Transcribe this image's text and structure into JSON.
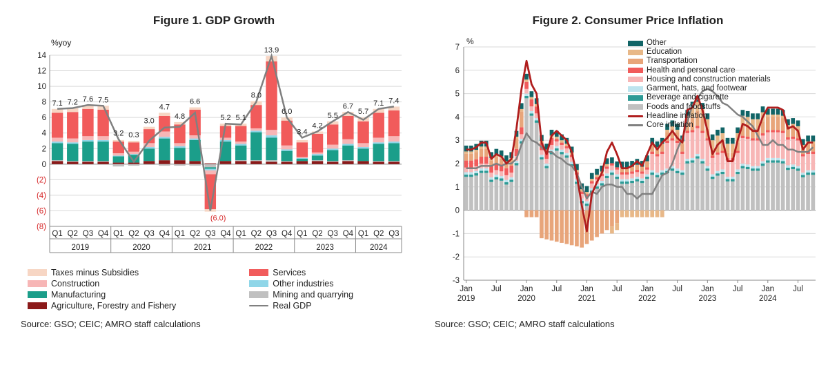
{
  "figure1": {
    "title": "Figure 1.   GDP Growth",
    "type": "stacked-bar + line",
    "y_axis_label": "%yoy",
    "ylim": [
      -8,
      14
    ],
    "yticks": [
      -8,
      -6,
      -4,
      -2,
      0,
      2,
      4,
      6,
      8,
      10,
      12,
      14
    ],
    "ytick_labels": [
      "(8)",
      "(6)",
      "(4)",
      "(2)",
      "0",
      "2",
      "4",
      "6",
      "8",
      "10",
      "12",
      "14"
    ],
    "categories": [
      "Q1",
      "Q2",
      "Q3",
      "Q4",
      "Q1",
      "Q2",
      "Q3",
      "Q4",
      "Q1",
      "Q2",
      "Q3",
      "Q4",
      "Q1",
      "Q2",
      "Q3",
      "Q4",
      "Q1",
      "Q2",
      "Q3",
      "Q4",
      "Q1",
      "Q2",
      "Q3"
    ],
    "year_groups": [
      {
        "label": "2019",
        "span": 4
      },
      {
        "label": "2020",
        "span": 4
      },
      {
        "label": "2021",
        "span": 4
      },
      {
        "label": "2022",
        "span": 4
      },
      {
        "label": "2023",
        "span": 4
      },
      {
        "label": "2024",
        "span": 3
      }
    ],
    "series": [
      {
        "name": "Taxes minus Subsidies",
        "color": "#f7d6c4",
        "values": [
          0.5,
          0.5,
          0.5,
          0.5,
          0.2,
          0.2,
          0.3,
          0.4,
          0.3,
          0.3,
          -0.3,
          0.3,
          0.3,
          0.5,
          0.7,
          0.4,
          0.3,
          0.3,
          0.4,
          0.5,
          0.5,
          0.5,
          0.5
        ]
      },
      {
        "name": "Services",
        "color": "#f15b5b",
        "values": [
          3.2,
          3.4,
          3.5,
          3.4,
          1.5,
          1.2,
          1.8,
          2.0,
          2.4,
          3.3,
          -4.5,
          1.5,
          2.0,
          3.0,
          8.8,
          3.2,
          1.9,
          2.4,
          2.6,
          3.0,
          2.8,
          3.2,
          3.3
        ]
      },
      {
        "name": "Construction",
        "color": "#f7b6b6",
        "values": [
          0.5,
          0.5,
          0.5,
          0.5,
          0.3,
          0.3,
          0.5,
          0.7,
          0.4,
          0.4,
          -0.5,
          0.3,
          0.3,
          0.3,
          0.7,
          0.5,
          0.1,
          0.2,
          0.5,
          0.6,
          0.5,
          0.6,
          0.7
        ]
      },
      {
        "name": "Other industries",
        "color": "#8fd6e8",
        "values": [
          0.2,
          0.2,
          0.2,
          0.2,
          0.1,
          0.1,
          0.2,
          0.2,
          0.2,
          0.2,
          -0.2,
          0.2,
          0.2,
          0.2,
          0.3,
          0.2,
          0.1,
          0.2,
          0.2,
          0.2,
          0.2,
          0.2,
          0.2
        ]
      },
      {
        "name": "Manufacturing",
        "color": "#1b9e8a",
        "values": [
          2.2,
          2.2,
          2.5,
          2.5,
          0.8,
          1.0,
          1.6,
          2.8,
          1.6,
          2.7,
          -0.2,
          2.5,
          1.9,
          3.6,
          2.9,
          1.3,
          0.3,
          0.6,
          1.4,
          1.9,
          1.6,
          2.2,
          2.3
        ]
      },
      {
        "name": "Mining and quarrying",
        "color": "#c0c0c0",
        "values": [
          0.1,
          0.1,
          0.1,
          0.1,
          -0.3,
          -0.2,
          -0.1,
          -0.2,
          -0.2,
          -0.2,
          -0.4,
          -0.1,
          0.1,
          0.1,
          0.2,
          0.1,
          -0.1,
          0.1,
          0.1,
          0.1,
          -0.1,
          0.1,
          0.1
        ]
      },
      {
        "name": "Agriculture, Forestry and Fishery",
        "color": "#8b1a1a",
        "values": [
          0.4,
          0.3,
          0.3,
          0.3,
          0.2,
          0.2,
          0.4,
          0.5,
          0.5,
          0.4,
          0.1,
          0.4,
          0.4,
          0.4,
          0.3,
          0.3,
          0.4,
          0.4,
          0.3,
          0.4,
          0.4,
          0.3,
          0.3
        ]
      }
    ],
    "line": {
      "name": "Real GDP",
      "color": "#808080",
      "width": 2.5,
      "values": [
        7.1,
        7.2,
        7.6,
        7.5,
        3.2,
        0.3,
        3.0,
        4.7,
        4.8,
        6.6,
        -6.0,
        5.2,
        5.1,
        8.0,
        13.9,
        6.0,
        3.4,
        4.2,
        5.5,
        6.7,
        5.7,
        7.1,
        7.4
      ],
      "labels": [
        "7.1",
        "7.2",
        "7.6",
        "7.5",
        "3.2",
        "0.3",
        "3.0",
        "4.7",
        "4.8",
        "6.6",
        "(6.0)",
        "5.2",
        "5.1",
        "8.0",
        "13.9",
        "6.0",
        "3.4",
        "4.2",
        "5.5",
        "6.7",
        "5.7",
        "7.1",
        "7.4"
      ]
    },
    "legend_items": [
      {
        "label": "Taxes minus Subsidies",
        "color": "#f7d6c4",
        "type": "box"
      },
      {
        "label": "Services",
        "color": "#f15b5b",
        "type": "box"
      },
      {
        "label": "Construction",
        "color": "#f7b6b6",
        "type": "box"
      },
      {
        "label": "Other industries",
        "color": "#8fd6e8",
        "type": "box"
      },
      {
        "label": "Manufacturing",
        "color": "#1b9e8a",
        "type": "box"
      },
      {
        "label": "Mining and quarrying",
        "color": "#c0c0c0",
        "type": "box"
      },
      {
        "label": "Agriculture, Forestry and Fishery",
        "color": "#8b1a1a",
        "type": "box"
      },
      {
        "label": "Real GDP",
        "color": "#808080",
        "type": "line"
      }
    ],
    "source": "Source: GSO; CEIC; AMRO staff calculations",
    "grid_color": "#d9d9d9",
    "axis_color": "#888",
    "background": "#ffffff"
  },
  "figure2": {
    "title": "Figure 2.   Consumer Price Inflation",
    "type": "stacked-bar + two lines",
    "y_axis_label": "%",
    "ylim": [
      -3,
      7
    ],
    "yticks": [
      -3,
      -2,
      -1,
      0,
      1,
      2,
      3,
      4,
      5,
      6,
      7
    ],
    "xticks": [
      "Jan\n2019",
      "Jul",
      "Jan\n2020",
      "Jul",
      "Jan\n2021",
      "Jul",
      "Jan\n2022",
      "Jul",
      "Jan\n2023",
      "Jul",
      "Jan\n2024",
      "Jul"
    ],
    "n_months": 70,
    "legend_items": [
      {
        "label": "Other",
        "color": "#116466",
        "type": "box"
      },
      {
        "label": "Education",
        "color": "#e8b888",
        "type": "box"
      },
      {
        "label": "Transportation",
        "color": "#e8a57a",
        "type": "box"
      },
      {
        "label": "Health and personal care",
        "color": "#f15b5b",
        "type": "box"
      },
      {
        "label": "Housing and construction materials",
        "color": "#f7b6b6",
        "type": "box"
      },
      {
        "label": "Garment, hats, and footwear",
        "color": "#bde4ee",
        "type": "box"
      },
      {
        "label": "Beverage and cigarette",
        "color": "#2d9b96",
        "type": "box"
      },
      {
        "label": "Foods and foodstuffs",
        "color": "#c0c0c0",
        "type": "box"
      },
      {
        "label": "Headline inflation",
        "color": "#b01e1e",
        "type": "line"
      },
      {
        "label": "Core inflation",
        "color": "#808080",
        "type": "line"
      }
    ],
    "series": {
      "other": {
        "color": "#116466"
      },
      "education": {
        "color": "#e8b888"
      },
      "transport": {
        "color": "#e8a57a"
      },
      "health": {
        "color": "#f15b5b"
      },
      "housing": {
        "color": "#f7b6b6"
      },
      "garment": {
        "color": "#bde4ee"
      },
      "beverage": {
        "color": "#2d9b96"
      },
      "foods": {
        "color": "#c0c0c0"
      }
    },
    "headline": {
      "color": "#b01e1e",
      "width": 2.8
    },
    "core": {
      "color": "#808080",
      "width": 2.5
    },
    "source": "Source: GSO; CEIC; AMRO staff calculations",
    "grid_color": "#d9d9d9",
    "axis_color": "#888",
    "background": "#ffffff",
    "headline_values": [
      2.6,
      2.6,
      2.7,
      2.9,
      2.9,
      2.2,
      2.4,
      2.3,
      2.0,
      2.2,
      3.5,
      5.2,
      6.4,
      5.4,
      5.0,
      2.9,
      2.4,
      3.2,
      3.4,
      3.2,
      3.0,
      2.5,
      1.5,
      0.2,
      -0.9,
      0.7,
      1.2,
      1.6,
      2.5,
      2.9,
      2.4,
      1.8,
      1.8,
      1.9,
      2.1,
      1.9,
      2.4,
      2.9,
      2.6,
      2.9,
      3.1,
      3.4,
      3.1,
      2.9,
      4.3,
      4.4,
      4.9,
      4.3,
      3.4,
      2.4,
      2.8,
      3.0,
      2.1,
      2.1,
      3.0,
      3.7,
      3.6,
      3.4,
      3.4,
      4.0,
      4.4,
      4.4,
      4.4,
      4.3,
      3.5,
      3.6,
      3.4,
      2.6,
      2.9,
      2.9
    ],
    "core_values": [
      1.8,
      1.8,
      1.8,
      1.9,
      1.9,
      1.9,
      2.0,
      1.9,
      2.0,
      2.0,
      2.2,
      2.8,
      3.3,
      3.0,
      2.9,
      2.7,
      2.5,
      2.5,
      2.3,
      2.2,
      2.0,
      1.9,
      1.6,
      1.0,
      0.5,
      0.8,
      0.7,
      1.0,
      1.1,
      1.1,
      1.0,
      1.0,
      0.7,
      0.7,
      0.5,
      0.7,
      0.7,
      0.7,
      1.1,
      1.5,
      1.6,
      2.0,
      2.6,
      3.1,
      3.8,
      4.5,
      4.8,
      5.1,
      5.2,
      5.1,
      4.9,
      4.6,
      4.5,
      4.3,
      4.1,
      4.0,
      3.8,
      3.6,
      3.2,
      2.8,
      2.8,
      3.0,
      2.8,
      2.8,
      2.6,
      2.6,
      2.5,
      2.5,
      2.5,
      2.7
    ]
  }
}
